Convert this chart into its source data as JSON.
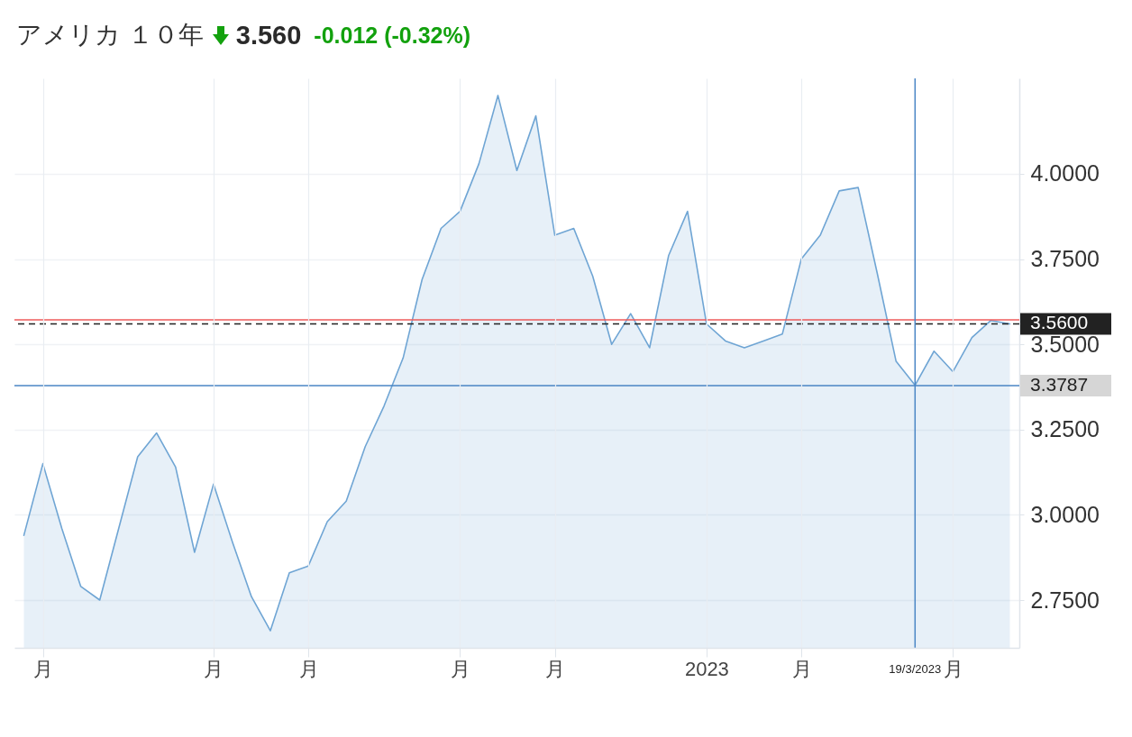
{
  "chart_data": {
    "type": "area",
    "title": "アメリカ １０年",
    "annotations": [
      "3.560",
      "-0.012 (-0.32%)"
    ],
    "categories": [
      null,
      "月",
      null,
      null,
      null,
      null,
      null,
      null,
      null,
      null,
      "月",
      null,
      null,
      null,
      null,
      "月",
      null,
      null,
      null,
      null,
      null,
      null,
      null,
      "月",
      null,
      null,
      null,
      null,
      "月",
      null,
      null,
      null,
      null,
      null,
      null,
      null,
      "2023",
      null,
      null,
      null,
      null,
      "月",
      null,
      null,
      null,
      null,
      null,
      "19/3/2023",
      null,
      "月",
      null,
      null,
      null
    ],
    "series": [
      {
        "color": "#6fa5d4",
        "values": [
          2.94,
          3.15,
          2.96,
          2.79,
          2.75,
          2.96,
          3.17,
          3.24,
          3.14,
          2.89,
          3.09,
          2.92,
          2.76,
          2.66,
          2.83,
          2.85,
          2.98,
          3.04,
          3.2,
          3.32,
          3.46,
          3.69,
          3.84,
          3.89,
          4.03,
          4.23,
          4.01,
          4.17,
          3.82,
          3.84,
          3.7,
          3.5,
          3.59,
          3.49,
          3.76,
          3.89,
          3.56,
          3.51,
          3.49,
          3.51,
          3.53,
          3.75,
          3.82,
          3.95,
          3.96,
          3.71,
          3.45,
          3.38,
          3.48,
          3.42,
          3.52,
          3.57,
          3.56
        ]
      }
    ],
    "ylim": [
      2.61,
      4.28
    ],
    "yticks": [
      {
        "value": 2.75,
        "label": "2.7500"
      },
      {
        "value": 3,
        "label": "3.0000"
      },
      {
        "value": 3.25,
        "label": "3.2500"
      },
      {
        "value": 3.5,
        "label": "3.5000"
      },
      {
        "value": 3.75,
        "label": "3.7500"
      },
      {
        "value": 4,
        "label": "4.0000"
      }
    ],
    "grid": true,
    "ref_lines": [
      {
        "axis": "y",
        "value": 3.572,
        "color": "#ee5b5b"
      },
      {
        "axis": "y",
        "value": 3.56,
        "label": "3.5600",
        "color": "#222222",
        "line_style": "dashed"
      },
      {
        "axis": "y",
        "value": 3.3787,
        "label": "3.3787",
        "color": "#4a86c5"
      },
      {
        "axis": "x",
        "value": "19/3/2023",
        "color": "#4a86c5"
      }
    ]
  }
}
